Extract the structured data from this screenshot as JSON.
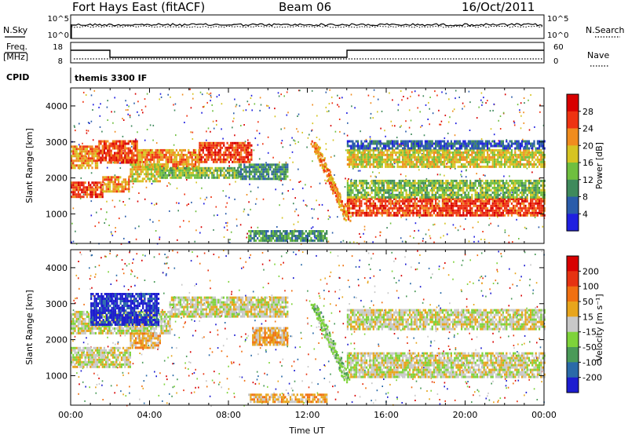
{
  "header": {
    "radar": "Fort Hays East (fitACF)",
    "beam": "Beam 06",
    "date": "16/Oct/2011",
    "cpid_value": "themis 3300 IF"
  },
  "labels": {
    "n_sky": "N.Sky",
    "n_search": "N.Search",
    "freq_line1": "Freq.",
    "freq_line2": "[MHz]",
    "nave": "Nave",
    "cpid": "CPID",
    "exp_hi": "10^5",
    "exp_lo": "10^0",
    "freq_hi": "18",
    "freq_lo": "8",
    "nave_hi": "60",
    "nave_lo": "0",
    "power_cb": "Power [dB]",
    "velocity_cb": "Velocity [m s⁻¹]"
  },
  "chart_data": [
    {
      "type": "heatmap",
      "name": "power",
      "xlabel": "",
      "ylabel": "Slant Range [km]",
      "x_ticks": [],
      "y_ticks": [
        "1000",
        "2000",
        "3000",
        "4000"
      ],
      "xlim_hours": [
        0,
        24
      ],
      "ylim_km": [
        180,
        4500
      ],
      "colorbar": {
        "label": "Power [dB]",
        "ticks": [
          "4",
          "8",
          "12",
          "16",
          "20",
          "24",
          "28"
        ],
        "colors": [
          "#1f1fe0",
          "#2a5caa",
          "#3f8a5c",
          "#6fbf3f",
          "#d6c422",
          "#f08c1e",
          "#ee3311",
          "#d80000"
        ]
      },
      "bands": [
        {
          "t": [
            0.0,
            1.4
          ],
          "r": [
            2300,
            2900
          ],
          "level": 5
        },
        {
          "t": [
            1.4,
            3.4
          ],
          "r": [
            2400,
            3050
          ],
          "level": 6
        },
        {
          "t": [
            3.4,
            6.5
          ],
          "r": [
            2250,
            2800
          ],
          "level": 5
        },
        {
          "t": [
            6.5,
            9.2
          ],
          "r": [
            2450,
            3000
          ],
          "level": 6
        },
        {
          "t": [
            0.0,
            1.6
          ],
          "r": [
            1450,
            1900
          ],
          "level": 6
        },
        {
          "t": [
            1.6,
            3.0
          ],
          "r": [
            1600,
            2050
          ],
          "level": 5
        },
        {
          "t": [
            3.0,
            4.5
          ],
          "r": [
            1900,
            2400
          ],
          "level": 4
        },
        {
          "t": [
            4.5,
            8.5
          ],
          "r": [
            2000,
            2300
          ],
          "level": 3
        },
        {
          "t": [
            8.5,
            11.0
          ],
          "r": [
            1950,
            2400
          ],
          "level": 2
        },
        {
          "t": [
            14.0,
            24.0
          ],
          "r": [
            950,
            1450
          ],
          "level": 6
        },
        {
          "t": [
            14.0,
            24.0
          ],
          "r": [
            1450,
            1950
          ],
          "level": 3
        },
        {
          "t": [
            14.0,
            24.0
          ],
          "r": [
            2300,
            2800
          ],
          "level": 4
        },
        {
          "t": [
            14.0,
            24.0
          ],
          "r": [
            2800,
            3050
          ],
          "level": 1
        },
        {
          "t": [
            9.0,
            13.0
          ],
          "r": [
            250,
            550
          ],
          "level": 2
        }
      ],
      "streak": {
        "t": [
          12.3,
          14.0
        ],
        "r": [
          3000,
          900
        ],
        "level": 5
      }
    },
    {
      "type": "heatmap",
      "name": "velocity",
      "xlabel": "Time UT",
      "ylabel": "Slant Range [km]",
      "x_ticks": [
        "00:00",
        "04:00",
        "08:00",
        "12:00",
        "16:00",
        "20:00",
        "00:00"
      ],
      "y_ticks": [
        "1000",
        "2000",
        "3000",
        "4000"
      ],
      "xlim_hours": [
        0,
        24
      ],
      "ylim_km": [
        180,
        4500
      ],
      "colorbar": {
        "label": "Velocity [m s⁻¹]",
        "ticks": [
          "200",
          "100",
          "50",
          "15",
          "-15",
          "-50",
          "-100",
          "-200"
        ],
        "colors": [
          "#1c1cd0",
          "#2a6aa8",
          "#4a9a58",
          "#7ed33a",
          "#c8c8c8",
          "#e8a51c",
          "#f07011",
          "#e63311",
          "#d80000"
        ]
      },
      "bands": [
        {
          "t": [
            0.0,
            5.0
          ],
          "r": [
            2200,
            2800
          ],
          "level": 4
        },
        {
          "t": [
            5.0,
            11.0
          ],
          "r": [
            2650,
            3200
          ],
          "level": 4
        },
        {
          "t": [
            0.0,
            3.0
          ],
          "r": [
            1250,
            1800
          ],
          "level": 4
        },
        {
          "t": [
            1.0,
            4.5
          ],
          "r": [
            2400,
            3300
          ],
          "level": 0
        },
        {
          "t": [
            3.0,
            4.5
          ],
          "r": [
            1800,
            2200
          ],
          "level": 5
        },
        {
          "t": [
            9.2,
            11.0
          ],
          "r": [
            1850,
            2350
          ],
          "level": 5
        },
        {
          "t": [
            14.0,
            24.0
          ],
          "r": [
            950,
            1650
          ],
          "level": 4
        },
        {
          "t": [
            14.0,
            24.0
          ],
          "r": [
            2300,
            2850
          ],
          "level": 4
        },
        {
          "t": [
            9.0,
            13.0
          ],
          "r": [
            250,
            500
          ],
          "level": 5
        }
      ],
      "streak": {
        "t": [
          12.3,
          14.0
        ],
        "r": [
          3000,
          900
        ],
        "level": 3
      }
    }
  ]
}
